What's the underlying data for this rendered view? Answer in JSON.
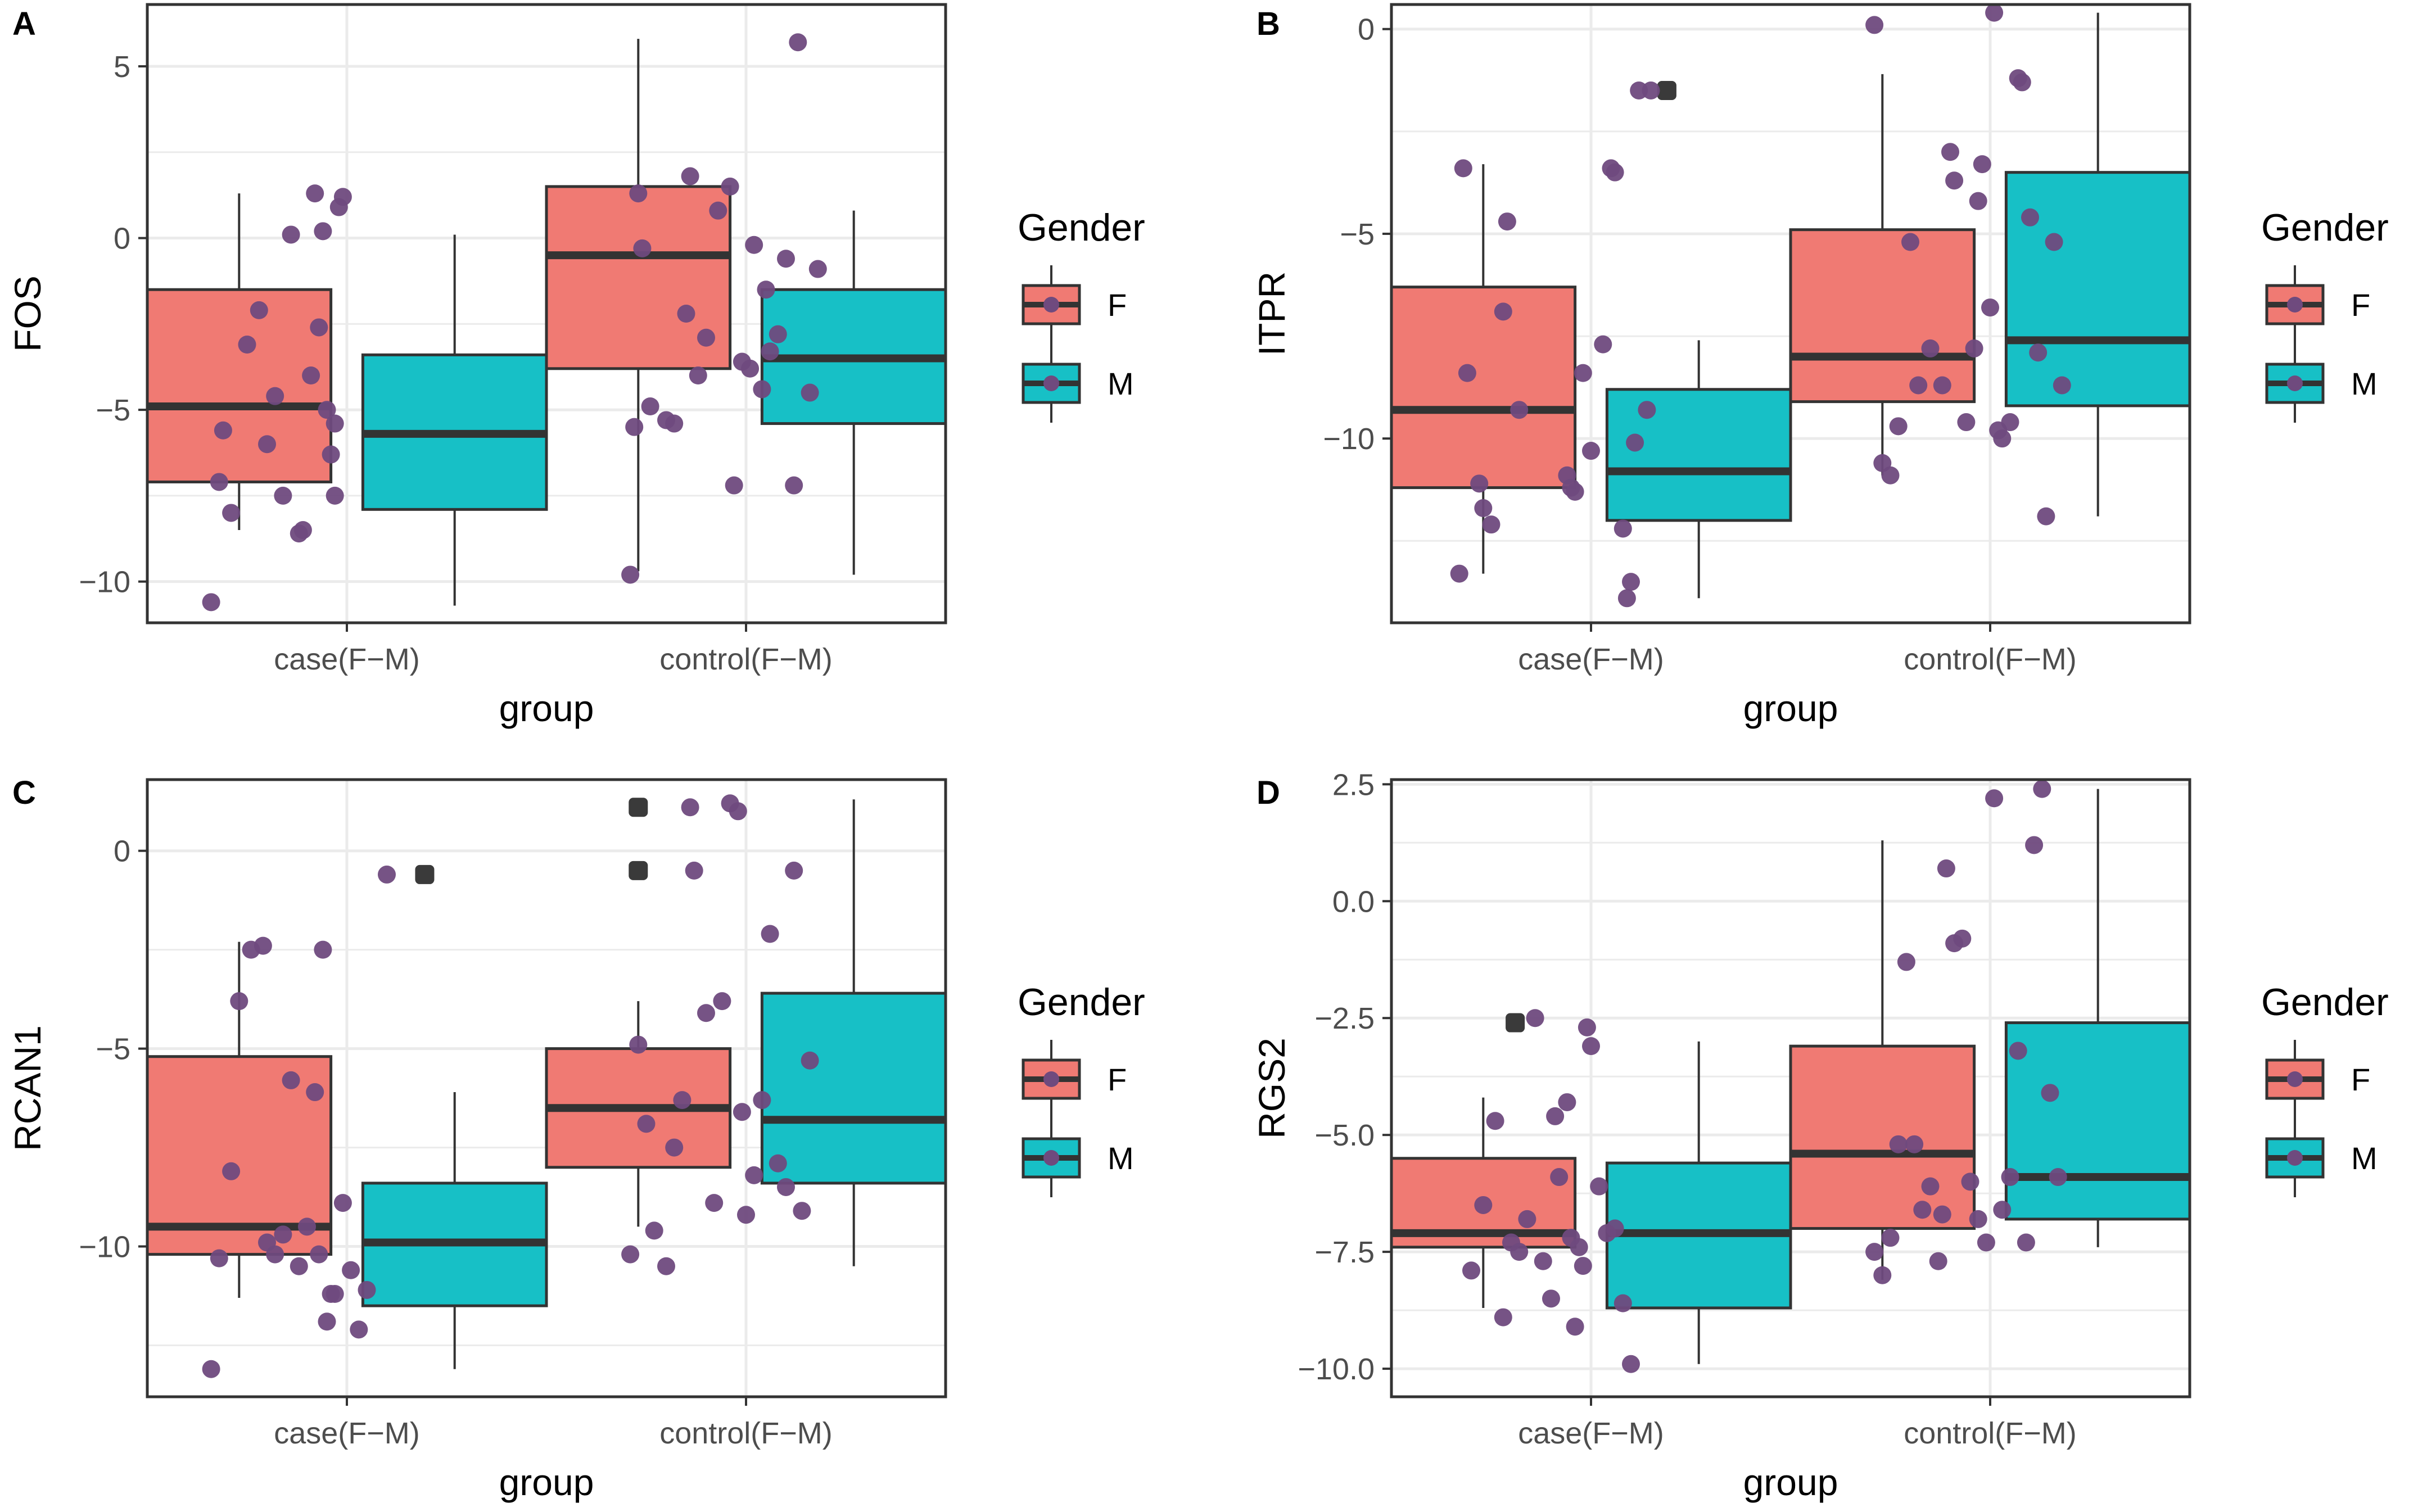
{
  "figure": {
    "legend_title": "Gender",
    "legend_entries": [
      "F",
      "M"
    ],
    "colors": {
      "F": "#f07a73",
      "M": "#17c0c6",
      "point": "#6f4a7e",
      "outlier": "#3a3a3a",
      "line": "#333333",
      "grid": "#ebebeb"
    }
  },
  "chart_data": [
    {
      "panel": "A",
      "type": "boxplot",
      "ylabel": "FOS",
      "xlabel": "group",
      "categories": [
        "case(F−M)",
        "control(F−M)"
      ],
      "ylim": [
        -11.2,
        6.8
      ],
      "yticks": [
        5,
        0,
        -5,
        -10
      ],
      "boxes": [
        {
          "cat": 0,
          "gender": "F",
          "q1": -7.1,
          "median": -4.9,
          "q3": -1.5,
          "lo": -8.5,
          "hi": 1.3
        },
        {
          "cat": 0,
          "gender": "M",
          "q1": -7.9,
          "median": -5.7,
          "q3": -3.4,
          "lo": -10.7,
          "hi": 0.1
        },
        {
          "cat": 1,
          "gender": "F",
          "q1": -3.8,
          "median": -0.5,
          "q3": 1.5,
          "lo": -9.7,
          "hi": 5.8
        },
        {
          "cat": 1,
          "gender": "M",
          "q1": -5.4,
          "median": -3.5,
          "q3": -1.5,
          "lo": -9.8,
          "hi": 0.8
        }
      ],
      "outliers": [],
      "points": [
        [
          -0.34,
          -10.6
        ],
        [
          -0.32,
          -7.1
        ],
        [
          -0.29,
          -8.0
        ],
        [
          -0.31,
          -5.6
        ],
        [
          -0.25,
          -3.1
        ],
        [
          -0.22,
          -2.1
        ],
        [
          -0.18,
          -4.6
        ],
        [
          -0.12,
          -8.6
        ],
        [
          -0.14,
          0.1
        ],
        [
          -0.16,
          -7.5
        ],
        [
          -0.2,
          -6.0
        ],
        [
          -0.09,
          -4.0
        ],
        [
          -0.07,
          -2.6
        ],
        [
          -0.05,
          -5.0
        ],
        [
          -0.04,
          -6.3
        ],
        [
          -0.03,
          -7.5
        ],
        [
          -0.02,
          0.9
        ],
        [
          -0.01,
          1.2
        ],
        [
          -0.08,
          1.3
        ],
        [
          -0.11,
          -8.5
        ],
        [
          -0.06,
          0.2
        ],
        [
          -0.03,
          -5.4
        ],
        [
          0.71,
          -9.8
        ],
        [
          0.72,
          -5.5
        ],
        [
          0.73,
          1.3
        ],
        [
          0.74,
          -0.3
        ],
        [
          0.76,
          -4.9
        ],
        [
          0.8,
          -5.3
        ],
        [
          0.82,
          -5.4
        ],
        [
          0.85,
          -2.2
        ],
        [
          0.86,
          1.8
        ],
        [
          0.88,
          -4.0
        ],
        [
          0.9,
          -2.9
        ],
        [
          0.93,
          0.8
        ],
        [
          0.96,
          1.5
        ],
        [
          0.97,
          -7.2
        ],
        [
          0.99,
          -3.6
        ],
        [
          1.02,
          -0.2
        ],
        [
          1.04,
          -4.4
        ],
        [
          1.06,
          -3.3
        ],
        [
          1.08,
          -2.8
        ],
        [
          1.1,
          -0.6
        ],
        [
          1.12,
          -7.2
        ],
        [
          1.13,
          5.7
        ],
        [
          1.16,
          -4.5
        ],
        [
          1.18,
          -0.9
        ],
        [
          1.01,
          -3.8
        ],
        [
          1.05,
          -1.5
        ]
      ]
    },
    {
      "panel": "B",
      "type": "boxplot",
      "ylabel": "ITPR",
      "xlabel": "group",
      "categories": [
        "case(F−M)",
        "control(F−M)"
      ],
      "ylim": [
        -14.5,
        0.6
      ],
      "yticks": [
        0,
        -5,
        -10
      ],
      "boxes": [
        {
          "cat": 0,
          "gender": "F",
          "q1": -11.2,
          "median": -9.3,
          "q3": -6.3,
          "lo": -13.3,
          "hi": -3.3
        },
        {
          "cat": 0,
          "gender": "M",
          "q1": -12.0,
          "median": -10.8,
          "q3": -8.8,
          "lo": -13.9,
          "hi": -7.6
        },
        {
          "cat": 1,
          "gender": "F",
          "q1": -9.1,
          "median": -8.0,
          "q3": -4.9,
          "lo": -10.9,
          "hi": -1.1
        },
        {
          "cat": 1,
          "gender": "M",
          "q1": -9.2,
          "median": -7.6,
          "q3": -3.5,
          "lo": -11.9,
          "hi": 0.4
        }
      ],
      "outliers": [
        [
          0.19,
          -1.5
        ]
      ],
      "points": [
        [
          -0.33,
          -13.3
        ],
        [
          -0.32,
          -3.4
        ],
        [
          -0.27,
          -11.7
        ],
        [
          -0.25,
          -12.1
        ],
        [
          -0.22,
          -6.9
        ],
        [
          -0.21,
          -4.7
        ],
        [
          -0.28,
          -11.1
        ],
        [
          -0.31,
          -8.4
        ],
        [
          -0.18,
          -9.3
        ],
        [
          -0.06,
          -10.9
        ],
        [
          -0.04,
          -11.3
        ],
        [
          -0.02,
          -8.4
        ],
        [
          0.0,
          -10.3
        ],
        [
          0.03,
          -7.7
        ],
        [
          0.05,
          -3.4
        ],
        [
          0.06,
          -3.5
        ],
        [
          0.08,
          -12.2
        ],
        [
          0.09,
          -13.9
        ],
        [
          0.1,
          -13.5
        ],
        [
          0.12,
          -1.5
        ],
        [
          0.14,
          -9.3
        ],
        [
          0.15,
          -1.5
        ],
        [
          0.11,
          -10.1
        ],
        [
          -0.05,
          -11.2
        ],
        [
          0.71,
          0.1
        ],
        [
          0.73,
          -10.6
        ],
        [
          0.75,
          -10.9
        ],
        [
          0.77,
          -9.7
        ],
        [
          0.8,
          -5.2
        ],
        [
          0.82,
          -8.7
        ],
        [
          0.85,
          -7.8
        ],
        [
          0.88,
          -8.7
        ],
        [
          0.9,
          -3.0
        ],
        [
          0.91,
          -3.7
        ],
        [
          0.94,
          -9.6
        ],
        [
          0.97,
          -4.2
        ],
        [
          0.98,
          -3.3
        ],
        [
          1.0,
          -6.8
        ],
        [
          1.02,
          -9.8
        ],
        [
          1.03,
          -10.0
        ],
        [
          1.05,
          -9.6
        ],
        [
          1.07,
          -1.2
        ],
        [
          1.08,
          -1.3
        ],
        [
          1.1,
          -4.6
        ],
        [
          1.12,
          -7.9
        ],
        [
          1.14,
          -11.9
        ],
        [
          1.16,
          -5.2
        ],
        [
          1.18,
          -8.7
        ],
        [
          1.01,
          0.4
        ],
        [
          0.96,
          -7.8
        ]
      ]
    },
    {
      "panel": "C",
      "type": "boxplot",
      "ylabel": "RCAN1",
      "xlabel": "group",
      "categories": [
        "case(F−M)",
        "control(F−M)"
      ],
      "ylim": [
        -13.8,
        1.8
      ],
      "yticks": [
        0,
        -5,
        -10
      ],
      "boxes": [
        {
          "cat": 0,
          "gender": "F",
          "q1": -10.2,
          "median": -9.5,
          "q3": -5.2,
          "lo": -11.3,
          "hi": -2.3
        },
        {
          "cat": 0,
          "gender": "M",
          "q1": -11.5,
          "median": -9.9,
          "q3": -8.4,
          "lo": -13.1,
          "hi": -6.1
        },
        {
          "cat": 1,
          "gender": "F",
          "q1": -8.0,
          "median": -6.5,
          "q3": -5.0,
          "lo": -9.5,
          "hi": -3.8
        },
        {
          "cat": 1,
          "gender": "M",
          "q1": -8.4,
          "median": -6.8,
          "q3": -3.6,
          "lo": -10.5,
          "hi": 1.3
        }
      ],
      "outliers": [
        [
          0.195,
          -0.6
        ],
        [
          0.73,
          1.1
        ],
        [
          0.73,
          -0.5
        ]
      ],
      "points": [
        [
          -0.34,
          -13.1
        ],
        [
          -0.32,
          -10.3
        ],
        [
          -0.29,
          -8.1
        ],
        [
          -0.27,
          -3.8
        ],
        [
          -0.24,
          -2.5
        ],
        [
          -0.21,
          -2.4
        ],
        [
          -0.18,
          -10.2
        ],
        [
          -0.16,
          -9.7
        ],
        [
          -0.14,
          -5.8
        ],
        [
          -0.12,
          -10.5
        ],
        [
          -0.1,
          -9.5
        ],
        [
          -0.2,
          -9.9
        ],
        [
          -0.08,
          -6.1
        ],
        [
          -0.06,
          -2.5
        ],
        [
          -0.05,
          -11.9
        ],
        [
          -0.03,
          -11.2
        ],
        [
          -0.01,
          -8.9
        ],
        [
          0.01,
          -10.6
        ],
        [
          0.03,
          -12.1
        ],
        [
          0.05,
          -11.1
        ],
        [
          0.1,
          -0.6
        ],
        [
          -0.07,
          -10.2
        ],
        [
          -0.04,
          -11.2
        ],
        [
          0.71,
          -10.2
        ],
        [
          0.73,
          -4.9
        ],
        [
          0.75,
          -6.9
        ],
        [
          0.77,
          -9.6
        ],
        [
          0.8,
          -10.5
        ],
        [
          0.82,
          -7.5
        ],
        [
          0.84,
          -6.3
        ],
        [
          0.86,
          1.1
        ],
        [
          0.87,
          -0.5
        ],
        [
          0.9,
          -4.1
        ],
        [
          0.92,
          -8.9
        ],
        [
          0.94,
          -3.8
        ],
        [
          0.96,
          1.2
        ],
        [
          0.98,
          1.0
        ],
        [
          1.0,
          -9.2
        ],
        [
          1.02,
          -8.2
        ],
        [
          1.04,
          -6.3
        ],
        [
          1.06,
          -2.1
        ],
        [
          1.08,
          -7.9
        ],
        [
          1.1,
          -8.5
        ],
        [
          1.12,
          -0.5
        ],
        [
          1.14,
          -9.1
        ],
        [
          1.16,
          -5.3
        ],
        [
          0.99,
          -6.6
        ]
      ]
    },
    {
      "panel": "D",
      "type": "boxplot",
      "ylabel": "RGS2",
      "xlabel": "group",
      "categories": [
        "case(F−M)",
        "control(F−M)"
      ],
      "ylim": [
        -10.6,
        2.6
      ],
      "yticks": [
        2.5,
        0.0,
        -2.5,
        -5.0,
        -7.5,
        -10.0
      ],
      "tick_labels": [
        "2.5",
        "0.0",
        "-2.5",
        "-5.0",
        "-7.5",
        "-10.0"
      ],
      "boxes": [
        {
          "cat": 0,
          "gender": "F",
          "q1": -7.4,
          "median": -7.1,
          "q3": -5.5,
          "lo": -8.7,
          "hi": -4.2
        },
        {
          "cat": 0,
          "gender": "M",
          "q1": -8.7,
          "median": -7.1,
          "q3": -5.6,
          "lo": -9.9,
          "hi": -3.0
        },
        {
          "cat": 1,
          "gender": "F",
          "q1": -7.0,
          "median": -5.4,
          "q3": -3.1,
          "lo": -8.1,
          "hi": 1.3
        },
        {
          "cat": 1,
          "gender": "M",
          "q1": -6.8,
          "median": -5.9,
          "q3": -2.6,
          "lo": -7.4,
          "hi": 2.4
        }
      ],
      "outliers": [
        [
          -0.19,
          -2.6
        ]
      ],
      "points": [
        [
          -0.3,
          -7.9
        ],
        [
          -0.27,
          -6.5
        ],
        [
          -0.24,
          -4.7
        ],
        [
          -0.22,
          -8.9
        ],
        [
          -0.2,
          -7.3
        ],
        [
          -0.18,
          -7.5
        ],
        [
          -0.16,
          -6.8
        ],
        [
          -0.14,
          -2.5
        ],
        [
          -0.12,
          -7.7
        ],
        [
          -0.1,
          -8.5
        ],
        [
          -0.08,
          -5.9
        ],
        [
          -0.06,
          -4.3
        ],
        [
          -0.05,
          -7.2
        ],
        [
          -0.04,
          -9.1
        ],
        [
          -0.03,
          -7.4
        ],
        [
          -0.01,
          -2.7
        ],
        [
          0.0,
          -3.1
        ],
        [
          0.02,
          -6.1
        ],
        [
          0.04,
          -7.1
        ],
        [
          0.06,
          -7.0
        ],
        [
          0.08,
          -8.6
        ],
        [
          0.1,
          -9.9
        ],
        [
          -0.09,
          -4.6
        ],
        [
          -0.02,
          -7.8
        ],
        [
          0.71,
          -7.5
        ],
        [
          0.73,
          -8.0
        ],
        [
          0.75,
          -7.2
        ],
        [
          0.77,
          -5.2
        ],
        [
          0.79,
          -1.3
        ],
        [
          0.81,
          -5.2
        ],
        [
          0.83,
          -6.6
        ],
        [
          0.85,
          -6.1
        ],
        [
          0.87,
          -7.7
        ],
        [
          0.89,
          0.7
        ],
        [
          0.91,
          -0.9
        ],
        [
          0.93,
          -0.8
        ],
        [
          0.95,
          -6.0
        ],
        [
          0.97,
          -6.8
        ],
        [
          0.99,
          -7.3
        ],
        [
          1.01,
          2.2
        ],
        [
          1.03,
          -6.6
        ],
        [
          1.05,
          -5.9
        ],
        [
          1.07,
          -3.2
        ],
        [
          1.09,
          -7.3
        ],
        [
          1.11,
          1.2
        ],
        [
          1.13,
          2.4
        ],
        [
          1.15,
          -4.1
        ],
        [
          1.17,
          -5.9
        ],
        [
          0.88,
          -6.7
        ]
      ]
    }
  ]
}
